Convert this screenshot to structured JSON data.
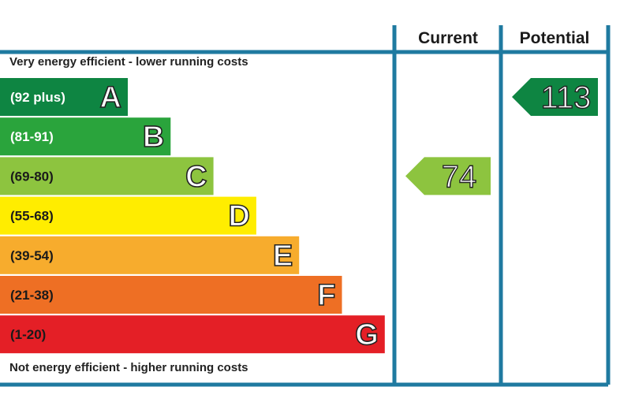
{
  "chart_data": {
    "type": "bar",
    "top_caption": "Very energy efficient - lower running costs",
    "bottom_caption": "Not energy efficient - higher running costs",
    "columns": [
      "Current",
      "Potential"
    ],
    "bands": [
      {
        "letter": "A",
        "range": "(92 plus)",
        "min": 92,
        "max": null,
        "color": "#0e8542",
        "label_color": "#ffffff"
      },
      {
        "letter": "B",
        "range": "(81-91)",
        "min": 81,
        "max": 91,
        "color": "#2aa43c",
        "label_color": "#ffffff"
      },
      {
        "letter": "C",
        "range": "(69-80)",
        "min": 69,
        "max": 80,
        "color": "#8dc43f",
        "label_color": "#1a1a1a"
      },
      {
        "letter": "D",
        "range": "(55-68)",
        "min": 55,
        "max": 68,
        "color": "#ffed00",
        "label_color": "#1a1a1a"
      },
      {
        "letter": "E",
        "range": "(39-54)",
        "min": 39,
        "max": 54,
        "color": "#f7ac2d",
        "label_color": "#1a1a1a"
      },
      {
        "letter": "F",
        "range": "(21-38)",
        "min": 21,
        "max": 38,
        "color": "#ee6f24",
        "label_color": "#1a1a1a"
      },
      {
        "letter": "G",
        "range": "(1-20)",
        "min": 1,
        "max": 20,
        "color": "#e41f26",
        "label_color": "#1a1a1a"
      }
    ],
    "ratings": [
      {
        "column": "Current",
        "value": 74,
        "band": "C",
        "color": "#8dc43f"
      },
      {
        "column": "Potential",
        "value": 113,
        "band": "A",
        "color": "#0e8542"
      }
    ],
    "frame_color": "#1f7aa0"
  }
}
